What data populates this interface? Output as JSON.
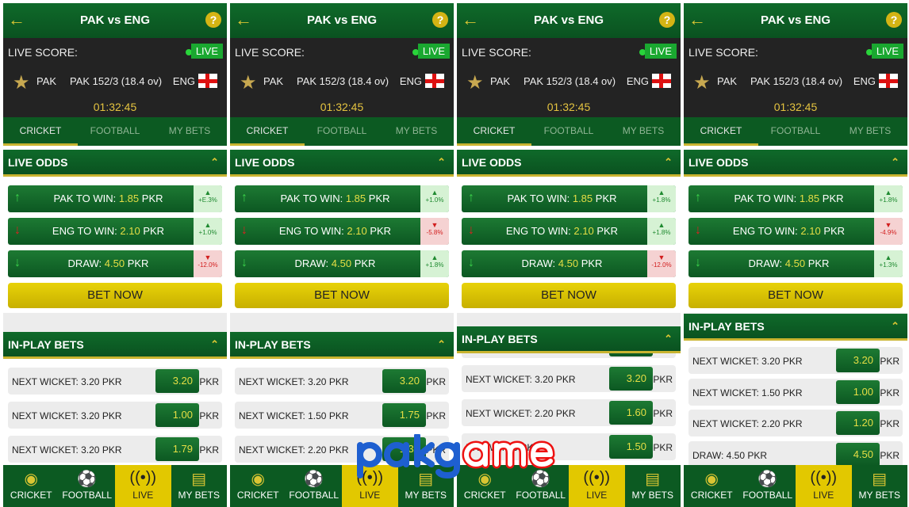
{
  "header": {
    "title": "PAK vs ENG",
    "back_icon": "arrow-left-icon",
    "help_label": "?"
  },
  "score": {
    "label": "LIVE SCORE:",
    "live_badge": "LIVE",
    "team1": "PAK",
    "score_text": "PAK 152/3 (18.4 ov)",
    "team2": "ENG",
    "time": "01:32:45"
  },
  "tabs": [
    "CRICKET",
    "FOOTBALL",
    "MY BETS"
  ],
  "live_odds_title": "LIVE ODDS",
  "in_play_title": "IN-PLAY BETS",
  "bet_now": "BET NOW",
  "currency": "PKR",
  "odds_labels": [
    {
      "name": "PAK TO WIN: ",
      "value": "1.85",
      "unit": " PKR",
      "arrow": "up"
    },
    {
      "name": "ENG TO WIN: ",
      "value": "2.10",
      "unit": " PKR",
      "arrow": "down-red"
    },
    {
      "name": "DRAW: ",
      "value": "4.50",
      "unit": " PKR",
      "arrow": "down"
    }
  ],
  "nav": [
    {
      "label": "CRICKET",
      "icon": "cricket-ball-icon"
    },
    {
      "label": "FOOTBALL",
      "icon": "football-icon"
    },
    {
      "label": "LIVE",
      "icon": "live-broadcast-icon"
    },
    {
      "label": "MY BETS",
      "icon": "clipboard-icon"
    }
  ],
  "colors": {
    "green": "#0c5a22",
    "yellow": "#e2c800",
    "up": "#1f8a30",
    "down": "#d21e1e"
  },
  "watermark": {
    "part1": "pak",
    "part2": "game"
  },
  "panels": [
    {
      "changes": [
        {
          "dir": "up",
          "text": "+E.3%"
        },
        {
          "dir": "up",
          "text": "+1.0%"
        },
        {
          "dir": "down",
          "text": "-12.0%"
        }
      ],
      "bets": [
        {
          "label": "NEXT WICKET: 3.20 PKR",
          "value": "3.20"
        },
        {
          "label": "NEXT WICKET: 3.20 PKR",
          "value": "1.00"
        },
        {
          "label": "NEXT WICKET: 3.20 PKR",
          "value": "1.79"
        }
      ]
    },
    {
      "changes": [
        {
          "dir": "up",
          "text": "+1.0%"
        },
        {
          "dir": "down",
          "text": "-5.8%"
        },
        {
          "dir": "up",
          "text": "+1.8%"
        }
      ],
      "bets": [
        {
          "label": "NEXT WICKET: 3.20 PKR",
          "value": "3.20"
        },
        {
          "label": "NEXT WICKET: 1.50 PKR",
          "value": "1.75"
        },
        {
          "label": "NEXT WICKET: 2.20 PKR",
          "value": "1.35"
        }
      ]
    },
    {
      "changes": [
        {
          "dir": "up",
          "text": "+1.8%"
        },
        {
          "dir": "up",
          "text": "+1.8%"
        },
        {
          "dir": "down",
          "text": "-12.0%"
        }
      ],
      "bets": [
        {
          "label": "NEXT WICKET: 3.20 PKR",
          "value": "3.20"
        },
        {
          "label": "NEXT WICKET: 2.20 PKR",
          "value": "1.60"
        },
        {
          "label": "DRAW: 4.50 PKR",
          "value": "1.50"
        }
      ]
    },
    {
      "changes": [
        {
          "dir": "up",
          "text": "+1.8%"
        },
        {
          "dir": "down",
          "text": "-4.9%"
        },
        {
          "dir": "up",
          "text": "+1.3%"
        }
      ],
      "bets": [
        {
          "label": "NEXT WICKET: 3.20 PKR",
          "value": "3.20"
        },
        {
          "label": "NEXT WICKET: 1.50 PKR",
          "value": "1.00"
        },
        {
          "label": "NEXT WICKET: 2.20 PKR",
          "value": "1.20"
        },
        {
          "label": "DRAW: 4.50 PKR",
          "value": "4.50"
        }
      ]
    }
  ]
}
